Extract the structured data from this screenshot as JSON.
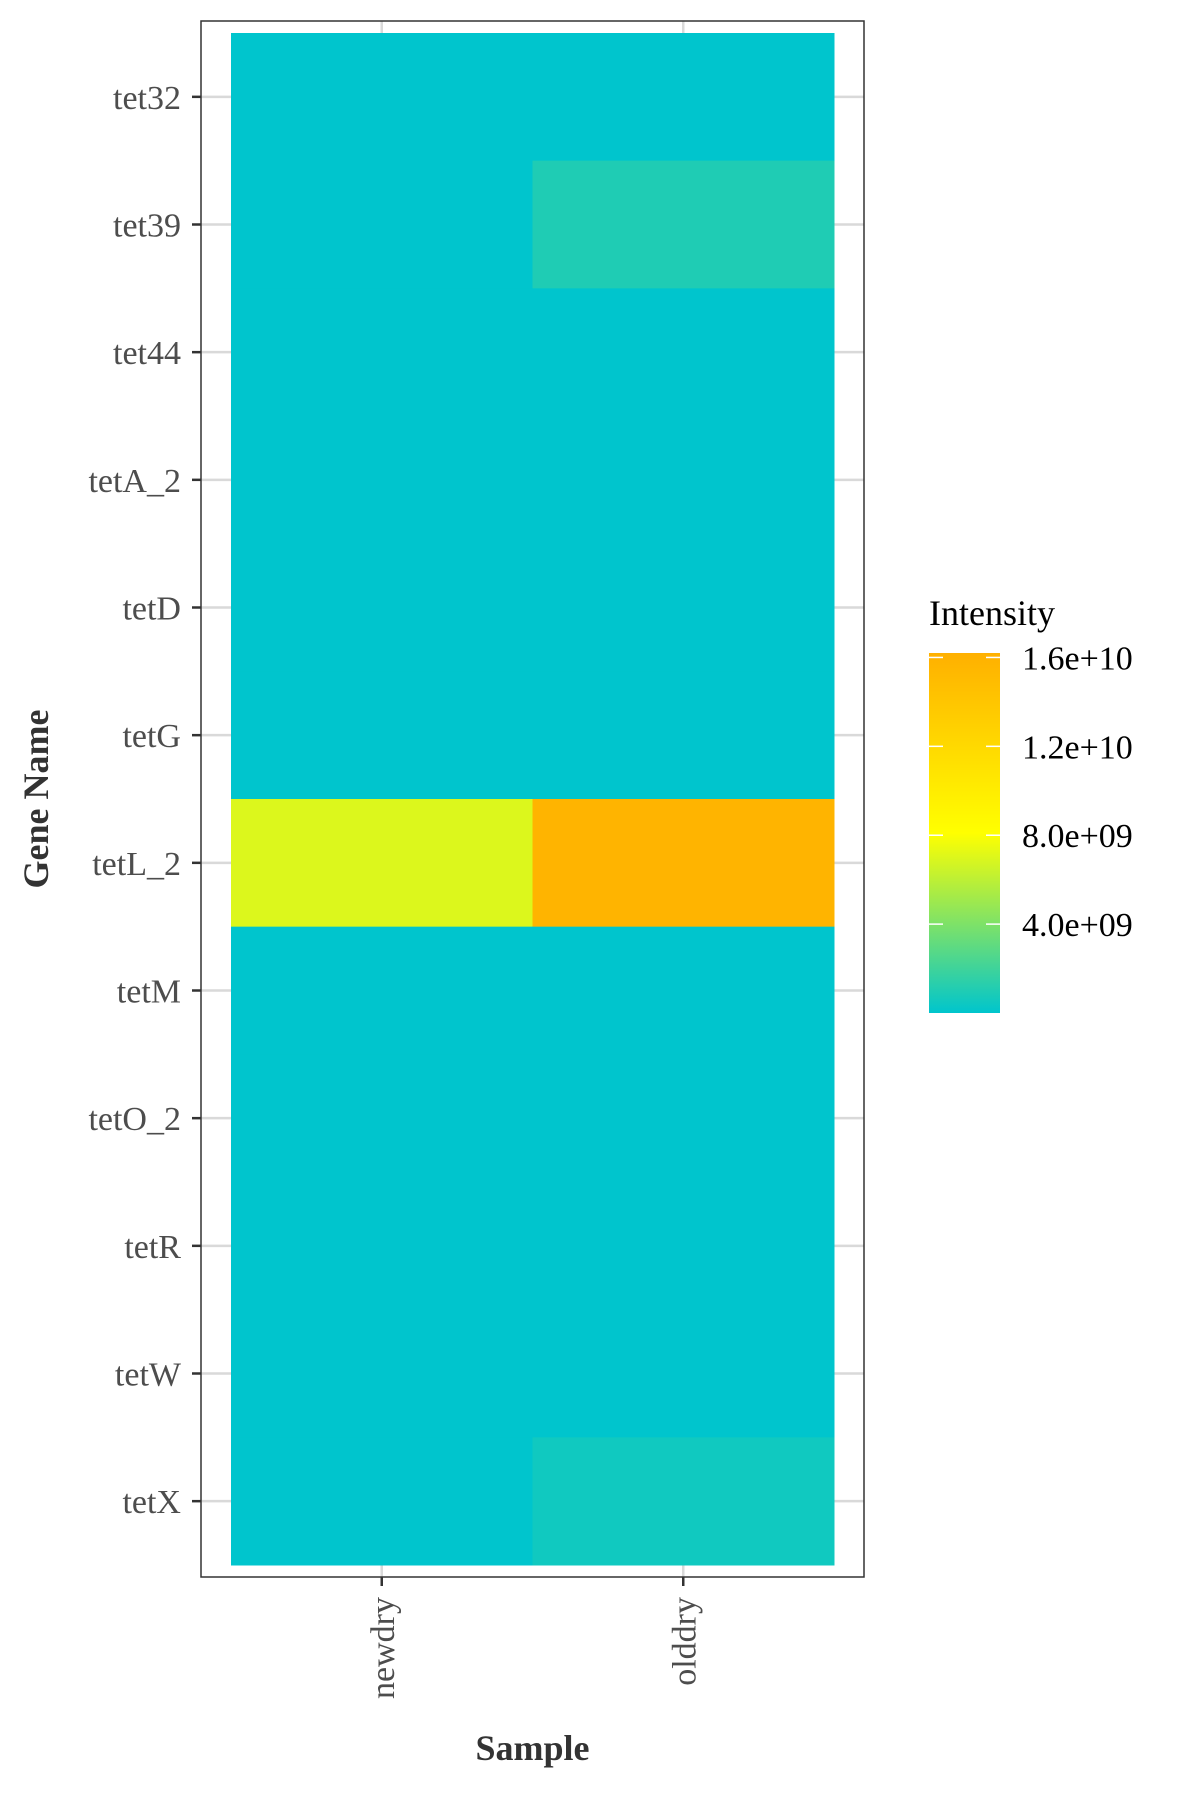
{
  "chart_data": {
    "type": "heatmap",
    "title": "",
    "xlabel": "Sample",
    "ylabel": "Gene Name",
    "x_categories": [
      "newdry",
      "olddry"
    ],
    "y_categories": [
      "tet32",
      "tet39",
      "tet44",
      "tetA_2",
      "tetD",
      "tetG",
      "tetL_2",
      "tetM",
      "tetO_2",
      "tetR",
      "tetW",
      "tetX"
    ],
    "values": [
      [
        0,
        0
      ],
      [
        0,
        1000000000
      ],
      [
        0,
        0
      ],
      [
        0,
        0
      ],
      [
        0,
        0
      ],
      [
        0,
        0
      ],
      [
        7000000000,
        15800000000
      ],
      [
        0,
        0
      ],
      [
        0,
        0
      ],
      [
        0,
        0
      ],
      [
        0,
        0
      ],
      [
        0,
        500000000
      ]
    ],
    "legend": {
      "title": "Intensity",
      "position": "right",
      "min": 0,
      "max": 16200000000,
      "breaks": [
        4000000000,
        8000000000,
        12000000000,
        16000000000
      ],
      "break_labels": [
        "4.0e+09",
        "8.0e+09",
        "1.2e+10",
        "1.6e+10"
      ],
      "colors": [
        "#00c5cd",
        "#ffff00",
        "#ffb000"
      ]
    },
    "grid": true,
    "theme": "bw"
  }
}
